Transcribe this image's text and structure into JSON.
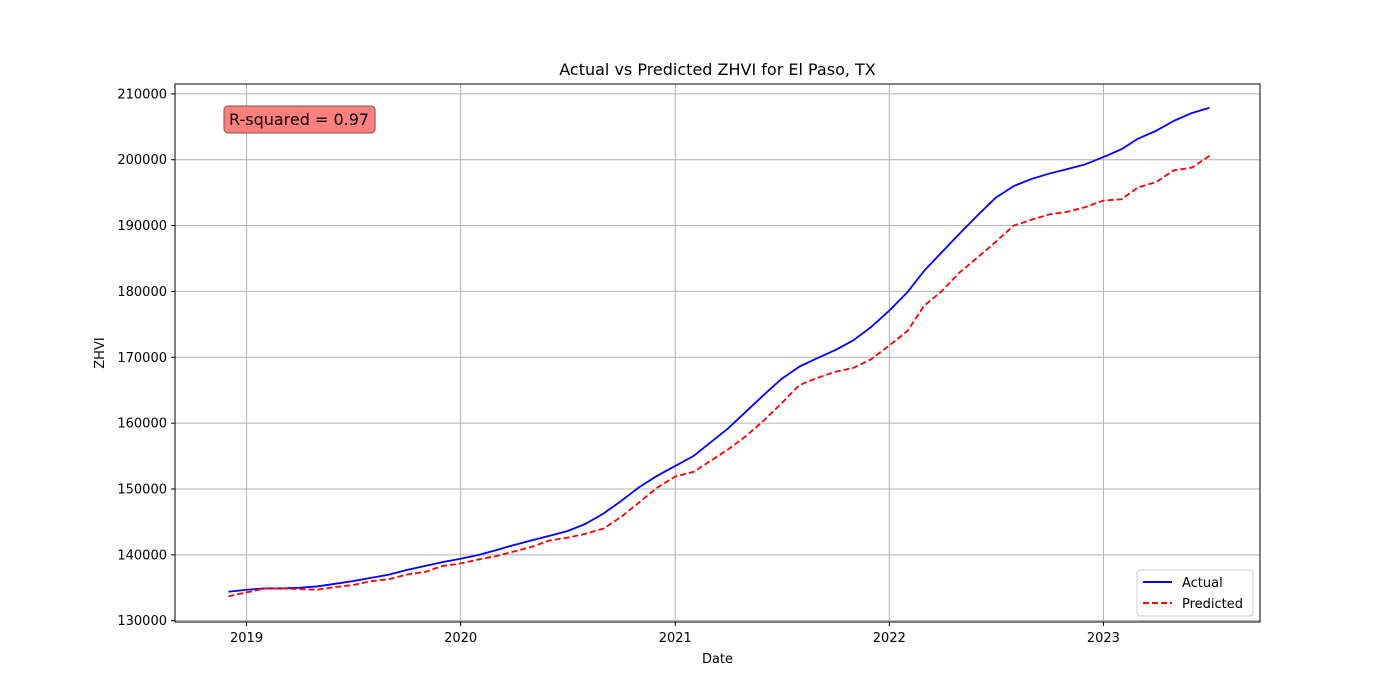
{
  "chart_data": {
    "type": "line",
    "title": "Actual vs Predicted ZHVI for El Paso, TX",
    "xlabel": "Date",
    "ylabel": "ZHVI",
    "x_ticks": [
      "2019",
      "2020",
      "2021",
      "2022",
      "2023"
    ],
    "y_ticks": [
      130000,
      140000,
      150000,
      160000,
      170000,
      180000,
      190000,
      200000,
      210000
    ],
    "ylim": [
      129800,
      211500
    ],
    "xlim": [
      "2018-09-01",
      "2023-09-25"
    ],
    "grid": true,
    "legend_position": "lower-right",
    "annotation": {
      "text": "R-squared = 0.97",
      "position": "top-left",
      "background_color": "#ff7f7f"
    },
    "x": [
      "2018-12",
      "2019-01",
      "2019-02",
      "2019-03",
      "2019-04",
      "2019-05",
      "2019-06",
      "2019-07",
      "2019-08",
      "2019-09",
      "2019-10",
      "2019-11",
      "2019-12",
      "2020-01",
      "2020-02",
      "2020-03",
      "2020-04",
      "2020-05",
      "2020-06",
      "2020-07",
      "2020-08",
      "2020-09",
      "2020-10",
      "2020-11",
      "2020-12",
      "2021-01",
      "2021-02",
      "2021-03",
      "2021-04",
      "2021-05",
      "2021-06",
      "2021-07",
      "2021-08",
      "2021-09",
      "2021-10",
      "2021-11",
      "2021-12",
      "2022-01",
      "2022-02",
      "2022-03",
      "2022-04",
      "2022-05",
      "2022-06",
      "2022-07",
      "2022-08",
      "2022-09",
      "2022-10",
      "2022-11",
      "2022-12",
      "2023-01",
      "2023-02",
      "2023-03",
      "2023-04",
      "2023-05",
      "2023-06",
      "2023-07"
    ],
    "series": [
      {
        "name": "Actual",
        "color": "#0000ff",
        "style": "solid",
        "values": [
          134400,
          134700,
          134900,
          134900,
          135000,
          135200,
          135600,
          136000,
          136500,
          137000,
          137700,
          138300,
          138900,
          139400,
          140000,
          140700,
          141500,
          142200,
          142900,
          143600,
          144700,
          146300,
          148200,
          150300,
          152000,
          153500,
          155000,
          157000,
          159200,
          161700,
          164300,
          166700,
          168600,
          169900,
          171100,
          172600,
          174600,
          177100,
          179900,
          183100,
          186000,
          188800,
          191600,
          194200,
          196000,
          197100,
          197900,
          198600,
          199300,
          200400,
          201600,
          203200,
          204400,
          205900,
          207100,
          207900
        ]
      },
      {
        "name": "Predicted",
        "color": "#ff0000",
        "style": "dashed",
        "values": [
          133700,
          134300,
          134900,
          134900,
          134800,
          134700,
          135100,
          135400,
          136000,
          136300,
          137000,
          137400,
          138300,
          138700,
          139300,
          139800,
          140500,
          141200,
          142200,
          142600,
          143200,
          144000,
          145800,
          148000,
          150200,
          151900,
          152600,
          154200,
          156000,
          158000,
          160400,
          163000,
          165800,
          166900,
          167800,
          168400,
          169700,
          171800,
          174000,
          177800,
          180100,
          182900,
          185200,
          187500,
          190000,
          190900,
          191700,
          192100,
          192800,
          193800,
          194000,
          195800,
          196600,
          198400,
          198800,
          200600
        ]
      }
    ]
  }
}
